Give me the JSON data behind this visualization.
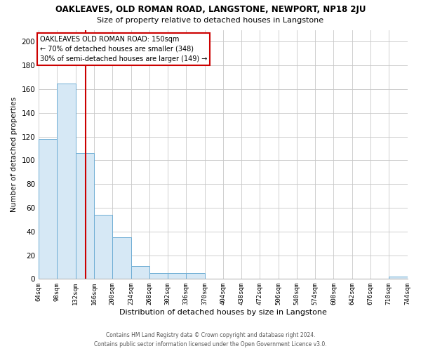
{
  "title": "OAKLEAVES, OLD ROMAN ROAD, LANGSTONE, NEWPORT, NP18 2JU",
  "subtitle": "Size of property relative to detached houses in Langstone",
  "xlabel": "Distribution of detached houses by size in Langstone",
  "ylabel": "Number of detached properties",
  "bar_fill_color": "#d6e8f5",
  "bar_edge_color": "#6eadd4",
  "grid_color": "#c8c8c8",
  "background_color": "#ffffff",
  "bin_edges": [
    64,
    98,
    132,
    166,
    200,
    234,
    268,
    302,
    336,
    370,
    404,
    438,
    472,
    506,
    540,
    574,
    608,
    642,
    676,
    710,
    744
  ],
  "bin_labels": [
    "64sqm",
    "98sqm",
    "132sqm",
    "166sqm",
    "200sqm",
    "234sqm",
    "268sqm",
    "302sqm",
    "336sqm",
    "370sqm",
    "404sqm",
    "438sqm",
    "472sqm",
    "506sqm",
    "540sqm",
    "574sqm",
    "608sqm",
    "642sqm",
    "676sqm",
    "710sqm",
    "744sqm"
  ],
  "bar_heights": [
    118,
    165,
    106,
    54,
    35,
    11,
    5,
    5,
    5,
    0,
    0,
    0,
    0,
    0,
    0,
    0,
    0,
    0,
    0,
    2
  ],
  "ylim": [
    0,
    210
  ],
  "yticks": [
    0,
    20,
    40,
    60,
    80,
    100,
    120,
    140,
    160,
    180,
    200
  ],
  "vline_x": 150,
  "vline_color": "#cc0000",
  "annotation_title": "OAKLEAVES OLD ROMAN ROAD: 150sqm",
  "annotation_line1": "← 70% of detached houses are smaller (348)",
  "annotation_line2": "30% of semi-detached houses are larger (149) →",
  "annotation_box_color": "#ffffff",
  "annotation_box_edge": "#cc0000",
  "footer_line1": "Contains HM Land Registry data © Crown copyright and database right 2024.",
  "footer_line2": "Contains public sector information licensed under the Open Government Licence v3.0."
}
